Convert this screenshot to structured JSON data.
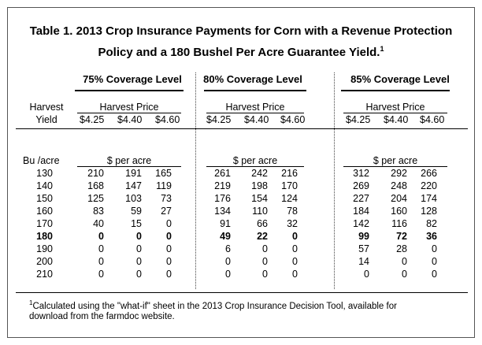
{
  "title_line1": "Table 1.  2013 Crop Insurance Payments for Corn with  a Revenue Protection",
  "title_line2": "Policy and a 180 Bushel Per Acre Guarantee Yield.",
  "title_footnote_marker": "1",
  "coverage_levels": [
    "75% Coverage Level",
    "80% Coverage Level",
    "85% Coverage Level"
  ],
  "harvest_price_label": "Harvest Price",
  "prices": [
    "$4.25",
    "$4.40",
    "$4.60"
  ],
  "row_header_line1": "Harvest",
  "row_header_line2": "Yield",
  "yield_unit": "Bu /acre",
  "payment_unit": "$ per acre",
  "rows": [
    {
      "yield": "130",
      "v75": [
        "210",
        "191",
        "165"
      ],
      "v80": [
        "261",
        "242",
        "216"
      ],
      "v85": [
        "312",
        "292",
        "266"
      ],
      "bold": false
    },
    {
      "yield": "140",
      "v75": [
        "168",
        "147",
        "119"
      ],
      "v80": [
        "219",
        "198",
        "170"
      ],
      "v85": [
        "269",
        "248",
        "220"
      ],
      "bold": false
    },
    {
      "yield": "150",
      "v75": [
        "125",
        "103",
        "73"
      ],
      "v80": [
        "176",
        "154",
        "124"
      ],
      "v85": [
        "227",
        "204",
        "174"
      ],
      "bold": false
    },
    {
      "yield": "160",
      "v75": [
        "83",
        "59",
        "27"
      ],
      "v80": [
        "134",
        "110",
        "78"
      ],
      "v85": [
        "184",
        "160",
        "128"
      ],
      "bold": false
    },
    {
      "yield": "170",
      "v75": [
        "40",
        "15",
        "0"
      ],
      "v80": [
        "91",
        "66",
        "32"
      ],
      "v85": [
        "142",
        "116",
        "82"
      ],
      "bold": false
    },
    {
      "yield": "180",
      "v75": [
        "0",
        "0",
        "0"
      ],
      "v80": [
        "49",
        "22",
        "0"
      ],
      "v85": [
        "99",
        "72",
        "36"
      ],
      "bold": true
    },
    {
      "yield": "190",
      "v75": [
        "0",
        "0",
        "0"
      ],
      "v80": [
        "6",
        "0",
        "0"
      ],
      "v85": [
        "57",
        "28",
        "0"
      ],
      "bold": false
    },
    {
      "yield": "200",
      "v75": [
        "0",
        "0",
        "0"
      ],
      "v80": [
        "0",
        "0",
        "0"
      ],
      "v85": [
        "14",
        "0",
        "0"
      ],
      "bold": false
    },
    {
      "yield": "210",
      "v75": [
        "0",
        "0",
        "0"
      ],
      "v80": [
        "0",
        "0",
        "0"
      ],
      "v85": [
        "0",
        "0",
        "0"
      ],
      "bold": false
    }
  ],
  "footnote_marker": "1",
  "footnote_line1": "Calculated using the \"what-if\" sheet in the 2013 Crop Insurance Decision Tool, available for",
  "footnote_line2": "download from the farmdoc website."
}
